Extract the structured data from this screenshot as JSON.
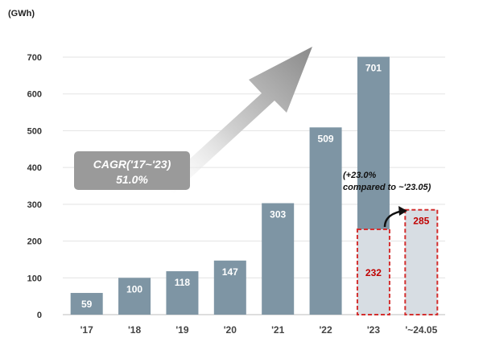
{
  "chart_data": {
    "type": "bar",
    "unit_label": "(GWh)",
    "categories": [
      "'17",
      "'18",
      "'19",
      "'20",
      "'21",
      "'22",
      "'23",
      "'~24.05"
    ],
    "values": [
      59,
      100,
      118,
      147,
      303,
      509,
      701,
      null
    ],
    "highlight": {
      "'23": 232,
      "'~24.05": 285
    },
    "ylim": [
      0,
      700
    ],
    "yticks": [
      0,
      100,
      200,
      300,
      400,
      500,
      600,
      700
    ],
    "grid": true,
    "annotations": {
      "cagr_line1": "CAGR('17~'23)",
      "cagr_line2": "51.0%",
      "growth_line1": "(+23.0%",
      "growth_line2": "compared to ~'23.05)"
    },
    "colors": {
      "bar": "#7e95a4",
      "highlight_fill": "#d7dde3",
      "highlight_border": "#d32f2f",
      "highlight_text": "#c00000",
      "grid": "#e3e3e3",
      "cagr_box": "#9a9a9a"
    }
  }
}
